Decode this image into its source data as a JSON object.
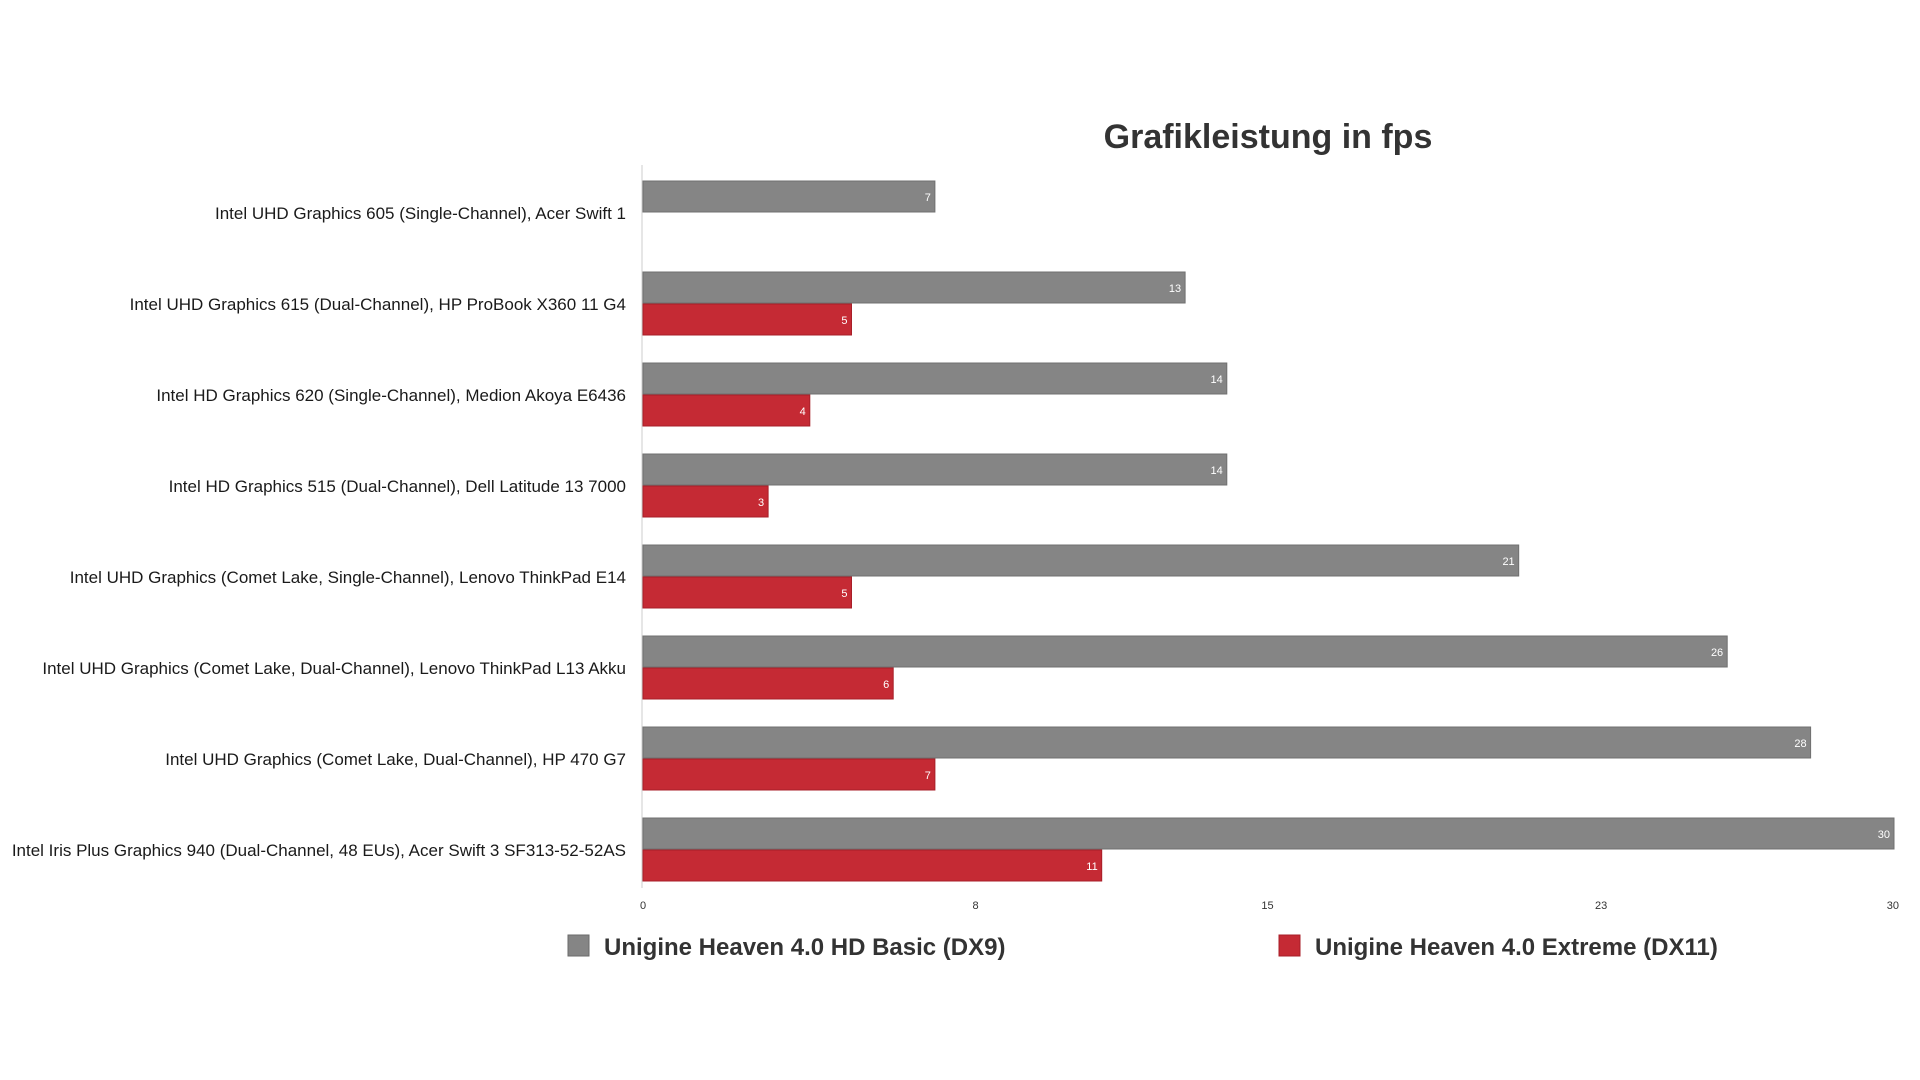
{
  "chart_data": {
    "type": "bar",
    "orientation": "horizontal",
    "title": "Grafikleistung in fps",
    "categories": [
      "Intel UHD Graphics 605 (Single-Channel), Acer Swift 1",
      "Intel UHD Graphics 615 (Dual-Channel), HP ProBook X360 11 G4",
      "Intel HD Graphics 620 (Single-Channel), Medion Akoya E6436",
      "Intel HD Graphics 515 (Dual-Channel), Dell Latitude 13 7000",
      "Intel UHD Graphics (Comet Lake, Single-Channel), Lenovo ThinkPad E14",
      "Intel UHD Graphics (Comet Lake, Dual-Channel), Lenovo ThinkPad L13 Akku",
      "Intel UHD Graphics (Comet Lake, Dual-Channel), HP 470 G7",
      "Intel Iris Plus Graphics 940 (Dual-Channel, 48 EUs), Acer Swift 3 SF313-52-52AS"
    ],
    "series": [
      {
        "name": "Unigine Heaven 4.0 HD Basic (DX9)",
        "color": "#858585",
        "values": [
          7,
          13,
          14,
          14,
          21,
          26,
          28,
          30
        ]
      },
      {
        "name": "Unigine Heaven 4.0 Extreme (DX11)",
        "color": "#c52a34",
        "values": [
          null,
          5,
          4,
          3,
          5,
          6,
          7,
          11
        ]
      }
    ],
    "xlim": [
      0,
      30
    ],
    "xticks": [
      0,
      8,
      15,
      23,
      30
    ],
    "xlabel": "",
    "ylabel": "",
    "grid": false,
    "legend_position": "bottom"
  }
}
